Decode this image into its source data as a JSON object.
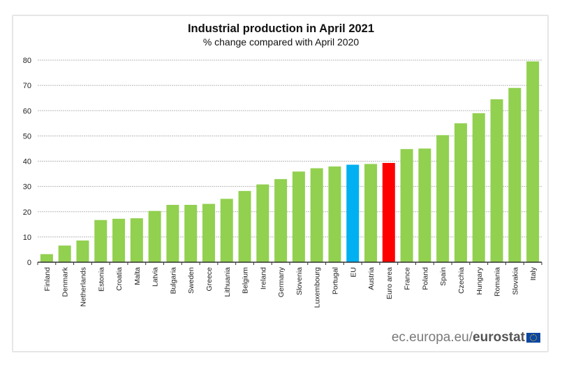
{
  "chart_data": {
    "type": "bar",
    "title": "Industrial production in April 2021",
    "subtitle": "% change compared with April 2020",
    "xlabel": "",
    "ylabel": "",
    "ylim": [
      0,
      80
    ],
    "yticks": [
      0,
      10,
      20,
      30,
      40,
      50,
      60,
      70,
      80
    ],
    "grid": true,
    "legend": "none",
    "categories": [
      "Finland",
      "Denmark",
      "Netherlands",
      "Estonia",
      "Croatia",
      "Malta",
      "Latvia",
      "Bulgaria",
      "Sweden",
      "Greece",
      "Lithuania",
      "Belgium",
      "Ireland",
      "Germany",
      "Slovenia",
      "Luxembourg",
      "Portugal",
      "EU",
      "Austria",
      "Euro area",
      "France",
      "Poland",
      "Spain",
      "Czechia",
      "Hungary",
      "Romania",
      "Slovakia",
      "Italy"
    ],
    "values": [
      3.2,
      6.6,
      8.6,
      16.7,
      17.2,
      17.4,
      20.3,
      22.7,
      22.7,
      23.1,
      25.1,
      28.2,
      30.8,
      32.9,
      35.9,
      37.2,
      37.9,
      38.6,
      38.9,
      39.3,
      44.8,
      45.0,
      50.3,
      55.0,
      59.0,
      64.5,
      69.0,
      79.5
    ],
    "colors": {
      "default": "#92D050",
      "EU": "#00B0F0",
      "Euro area": "#FF0000"
    }
  },
  "footer": {
    "source_prefix": "ec.europa.eu/",
    "source_brand": "eurostat",
    "logo": "eu-flag-icon"
  }
}
